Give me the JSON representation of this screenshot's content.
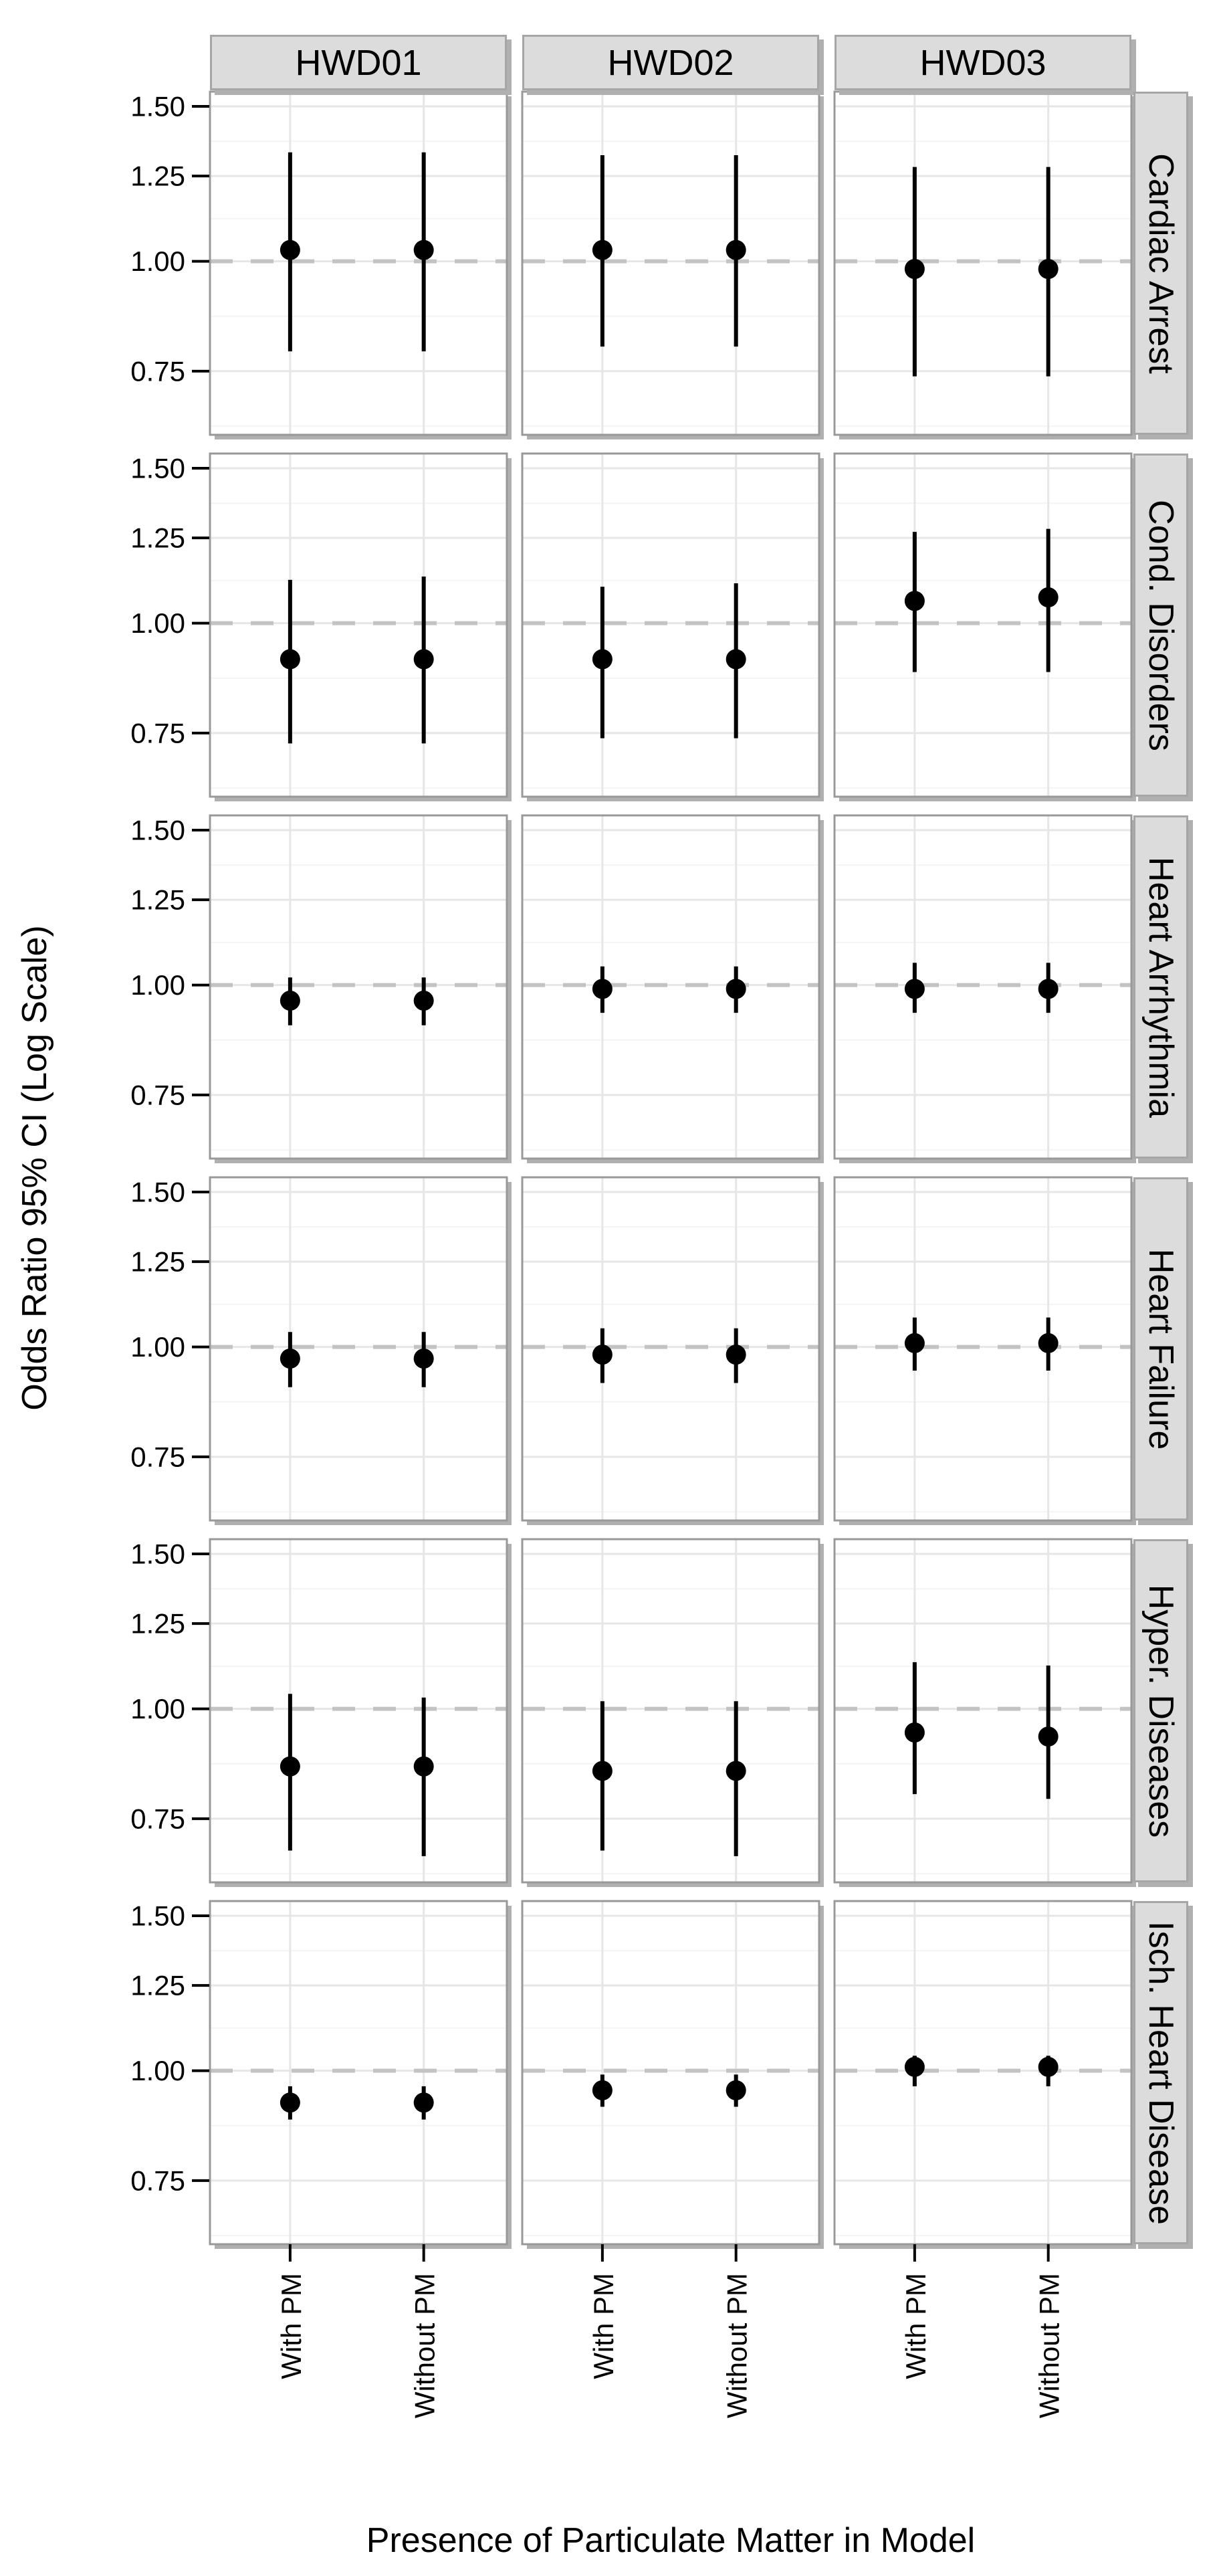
{
  "chart_data": {
    "type": "scatter",
    "subtype": "pointrange-forest-plot",
    "title": "",
    "xlabel": "Presence of Particulate Matter in Model",
    "ylabel": "Odds Ratio 95% CI (Log Scale)",
    "x_categories": [
      "With PM",
      "Without PM"
    ],
    "col_facets": [
      "HWD01",
      "HWD02",
      "HWD03"
    ],
    "row_facets": [
      "Cardiac Arrest",
      "Cond. Disorders",
      "Heart Arrhythmia",
      "Heart Failure",
      "Hyper. Diseases",
      "Isch. Heart Disease"
    ],
    "y_scale": "log",
    "ylim": [
      0.635,
      1.559
    ],
    "y_ticks": [
      1.5,
      1.25,
      1.0,
      0.75
    ],
    "y_tick_labels": [
      "1.50",
      "1.25",
      "1.00",
      "0.75"
    ],
    "y_minor_gridlines": [
      1.369,
      1.118,
      0.866,
      0.6495
    ],
    "reference_line": 1.0,
    "grid": true,
    "legend": "none",
    "facets": [
      {
        "row": "Cardiac Arrest",
        "cells": [
          {
            "col": "HWD01",
            "points": [
              {
                "x": "With PM",
                "or": 1.03,
                "ci": [
                  0.79,
                  1.33
                ]
              },
              {
                "x": "Without PM",
                "or": 1.03,
                "ci": [
                  0.79,
                  1.33
                ]
              }
            ]
          },
          {
            "col": "HWD02",
            "points": [
              {
                "x": "With PM",
                "or": 1.03,
                "ci": [
                  0.8,
                  1.32
                ]
              },
              {
                "x": "Without PM",
                "or": 1.03,
                "ci": [
                  0.8,
                  1.32
                ]
              }
            ]
          },
          {
            "col": "HWD03",
            "points": [
              {
                "x": "With PM",
                "or": 0.98,
                "ci": [
                  0.74,
                  1.28
                ]
              },
              {
                "x": "Without PM",
                "or": 0.98,
                "ci": [
                  0.74,
                  1.28
                ]
              }
            ]
          }
        ]
      },
      {
        "row": "Cond. Disorders",
        "cells": [
          {
            "col": "HWD01",
            "points": [
              {
                "x": "With PM",
                "or": 0.91,
                "ci": [
                  0.73,
                  1.12
                ]
              },
              {
                "x": "Without PM",
                "or": 0.91,
                "ci": [
                  0.73,
                  1.13
                ]
              }
            ]
          },
          {
            "col": "HWD02",
            "points": [
              {
                "x": "With PM",
                "or": 0.91,
                "ci": [
                  0.74,
                  1.1
                ]
              },
              {
                "x": "Without PM",
                "or": 0.91,
                "ci": [
                  0.74,
                  1.11
                ]
              }
            ]
          },
          {
            "col": "HWD03",
            "points": [
              {
                "x": "With PM",
                "or": 1.06,
                "ci": [
                  0.88,
                  1.27
                ]
              },
              {
                "x": "Without PM",
                "or": 1.07,
                "ci": [
                  0.88,
                  1.28
                ]
              }
            ]
          }
        ]
      },
      {
        "row": "Heart Arrhythmia",
        "cells": [
          {
            "col": "HWD01",
            "points": [
              {
                "x": "With PM",
                "or": 0.96,
                "ci": [
                  0.9,
                  1.02
                ]
              },
              {
                "x": "Without PM",
                "or": 0.96,
                "ci": [
                  0.9,
                  1.02
                ]
              }
            ]
          },
          {
            "col": "HWD02",
            "points": [
              {
                "x": "With PM",
                "or": 0.99,
                "ci": [
                  0.93,
                  1.05
                ]
              },
              {
                "x": "Without PM",
                "or": 0.99,
                "ci": [
                  0.93,
                  1.05
                ]
              }
            ]
          },
          {
            "col": "HWD03",
            "points": [
              {
                "x": "With PM",
                "or": 0.99,
                "ci": [
                  0.93,
                  1.06
                ]
              },
              {
                "x": "Without PM",
                "or": 0.99,
                "ci": [
                  0.93,
                  1.06
                ]
              }
            ]
          }
        ]
      },
      {
        "row": "Heart Failure",
        "cells": [
          {
            "col": "HWD01",
            "points": [
              {
                "x": "With PM",
                "or": 0.97,
                "ci": [
                  0.9,
                  1.04
                ]
              },
              {
                "x": "Without PM",
                "or": 0.97,
                "ci": [
                  0.9,
                  1.04
                ]
              }
            ]
          },
          {
            "col": "HWD02",
            "points": [
              {
                "x": "With PM",
                "or": 0.98,
                "ci": [
                  0.91,
                  1.05
                ]
              },
              {
                "x": "Without PM",
                "or": 0.98,
                "ci": [
                  0.91,
                  1.05
                ]
              }
            ]
          },
          {
            "col": "HWD03",
            "points": [
              {
                "x": "With PM",
                "or": 1.01,
                "ci": [
                  0.94,
                  1.08
                ]
              },
              {
                "x": "Without PM",
                "or": 1.01,
                "ci": [
                  0.94,
                  1.08
                ]
              }
            ]
          }
        ]
      },
      {
        "row": "Hyper. Diseases",
        "cells": [
          {
            "col": "HWD01",
            "points": [
              {
                "x": "With PM",
                "or": 0.86,
                "ci": [
                  0.69,
                  1.04
                ]
              },
              {
                "x": "Without PM",
                "or": 0.86,
                "ci": [
                  0.68,
                  1.03
                ]
              }
            ]
          },
          {
            "col": "HWD02",
            "points": [
              {
                "x": "With PM",
                "or": 0.85,
                "ci": [
                  0.69,
                  1.02
                ]
              },
              {
                "x": "Without PM",
                "or": 0.85,
                "ci": [
                  0.68,
                  1.02
                ]
              }
            ]
          },
          {
            "col": "HWD03",
            "points": [
              {
                "x": "With PM",
                "or": 0.94,
                "ci": [
                  0.8,
                  1.13
                ]
              },
              {
                "x": "Without PM",
                "or": 0.93,
                "ci": [
                  0.79,
                  1.12
                ]
              }
            ]
          }
        ]
      },
      {
        "row": "Isch. Heart Disease",
        "cells": [
          {
            "col": "HWD01",
            "points": [
              {
                "x": "With PM",
                "or": 0.92,
                "ci": [
                  0.88,
                  0.96
                ]
              },
              {
                "x": "Without PM",
                "or": 0.92,
                "ci": [
                  0.88,
                  0.96
                ]
              }
            ]
          },
          {
            "col": "HWD02",
            "points": [
              {
                "x": "With PM",
                "or": 0.95,
                "ci": [
                  0.91,
                  0.99
                ]
              },
              {
                "x": "Without PM",
                "or": 0.95,
                "ci": [
                  0.91,
                  0.99
                ]
              }
            ]
          },
          {
            "col": "HWD03",
            "points": [
              {
                "x": "With PM",
                "or": 1.01,
                "ci": [
                  0.96,
                  1.04
                ]
              },
              {
                "x": "Without PM",
                "or": 1.01,
                "ci": [
                  0.96,
                  1.04
                ]
              }
            ]
          }
        ]
      }
    ]
  },
  "colors": {
    "background": "#ffffff",
    "panel_background": "#ffffff",
    "panel_border": "#999999",
    "grid_major": "#e6e6e6",
    "grid_minor": "#f4f4f4",
    "reference_line": "#c3c3c3",
    "data": "#000000",
    "strip_background": "#dcdcdc",
    "strip_border": "#a6a6a6",
    "shadow": "#b0b0b0",
    "tick": "#000000",
    "text": "#000000"
  }
}
